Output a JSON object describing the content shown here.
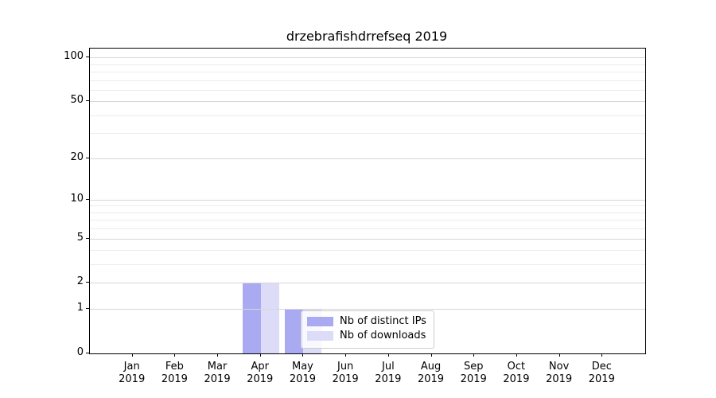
{
  "title": "drzebrafishdrrefseq 2019",
  "chart_data": {
    "type": "bar",
    "title": "drzebrafishdrrefseq 2019",
    "x_tick_months": [
      "Jan",
      "Feb",
      "Mar",
      "Apr",
      "May",
      "Jun",
      "Jul",
      "Aug",
      "Sep",
      "Oct",
      "Nov",
      "Dec"
    ],
    "x_tick_year": "2019",
    "series": [
      {
        "name": "Nb of distinct IPs",
        "color": "#aaaaf2",
        "values": [
          0,
          0,
          0,
          2,
          1,
          0,
          0,
          0,
          0,
          0,
          0,
          0
        ]
      },
      {
        "name": "Nb of downloads",
        "color": "#dcdcf8",
        "values": [
          0,
          0,
          0,
          2,
          1,
          0,
          0,
          0,
          0,
          0,
          0,
          0
        ]
      }
    ],
    "y_scale": "log1p",
    "ylim": [
      0,
      115
    ],
    "y_ticks": [
      0,
      1,
      2,
      5,
      10,
      20,
      50,
      100
    ],
    "y_minor_ticks": [
      3,
      4,
      6,
      7,
      8,
      9,
      30,
      40,
      60,
      70,
      80,
      90
    ],
    "grid": "on",
    "legend_position": "inside lower center-right"
  },
  "colors": {
    "background": "#ffffff",
    "bar_distinct_ips": "#aaaaf2",
    "bar_downloads": "#dcdcf8",
    "grid_major": "#d6d6d6",
    "grid_minor": "#ececec",
    "axis_frame": "#000000",
    "legend_border": "#cccccc",
    "text": "#000000"
  }
}
